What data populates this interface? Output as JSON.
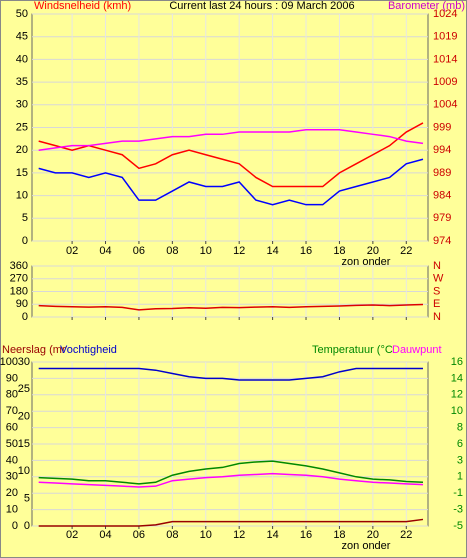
{
  "chart_data": [
    {
      "type": "line",
      "title": "Current last 24 hours : 09 March 2006",
      "y_label": "Windsnelheid (kmh)",
      "y2_label": "Barometer (mb)",
      "x": [
        0,
        1,
        2,
        3,
        4,
        5,
        6,
        7,
        8,
        9,
        10,
        11,
        12,
        13,
        14,
        15,
        16,
        17,
        18,
        19,
        20,
        21,
        22,
        23
      ],
      "xlim": [
        -0.4,
        23.3
      ],
      "xticks": [
        {
          "value": 2,
          "label": "02"
        },
        {
          "value": 4,
          "label": "04"
        },
        {
          "value": 6,
          "label": "06"
        },
        {
          "value": 8,
          "label": "08"
        },
        10,
        12,
        14,
        16,
        18,
        20,
        22
      ],
      "ylim": [
        0,
        50
      ],
      "yticks": [
        0,
        5,
        10,
        15,
        20,
        25,
        30,
        35,
        40,
        45,
        50
      ],
      "y2lim": [
        974,
        1024
      ],
      "y2ticks": [
        974,
        979,
        984,
        989,
        994,
        999,
        1004,
        1009,
        1014,
        1019,
        1024
      ],
      "annotation": "zon onder",
      "grid": true,
      "series": [
        {
          "color": "#ff0000",
          "values": [
            22,
            21,
            20,
            21,
            20,
            19,
            16,
            17,
            19,
            20,
            19,
            18,
            17,
            14,
            12,
            12,
            12,
            12,
            15,
            17,
            19,
            21,
            24,
            26
          ]
        },
        {
          "color": "#0000ff",
          "values": [
            16,
            15,
            15,
            14,
            15,
            14,
            9,
            9,
            11,
            13,
            12,
            12,
            13,
            9,
            8,
            9,
            8,
            8,
            11,
            12,
            13,
            14,
            17,
            18
          ]
        },
        {
          "name": "Barometer (mb)",
          "color": "#ff00ff",
          "axis": "y2",
          "values": [
            994,
            994.5,
            995,
            995,
            995.5,
            996,
            996,
            996.5,
            997,
            997,
            997.5,
            997.5,
            998,
            998,
            998,
            998,
            998.5,
            998.5,
            998.5,
            998,
            997.5,
            997,
            996,
            995.5
          ]
        }
      ]
    },
    {
      "type": "line",
      "x": [
        0,
        1,
        2,
        3,
        4,
        5,
        6,
        7,
        8,
        9,
        10,
        11,
        12,
        13,
        14,
        15,
        16,
        17,
        18,
        19,
        20,
        21,
        22,
        23
      ],
      "xlim": [
        -0.4,
        23.3
      ],
      "xticks": [
        2,
        4,
        6,
        8,
        10,
        12,
        14,
        16,
        18,
        20,
        22
      ],
      "xtick_labels": false,
      "ylim": [
        0,
        360
      ],
      "yticks": [
        0,
        90,
        180,
        270,
        360
      ],
      "y2lim": [
        0,
        360
      ],
      "y2ticks": [
        {
          "value": 0,
          "label": "N"
        },
        {
          "value": 90,
          "label": "E"
        },
        {
          "value": 180,
          "label": "S"
        },
        {
          "value": 270,
          "label": "W"
        },
        {
          "value": 360,
          "label": "N"
        }
      ],
      "annotation": "zon onder",
      "grid": true,
      "series": [
        {
          "color": "#dd0000",
          "values": [
            80,
            75,
            72,
            70,
            72,
            68,
            50,
            58,
            60,
            65,
            62,
            68,
            66,
            70,
            72,
            68,
            72,
            75,
            78,
            82,
            85,
            80,
            85,
            88
          ]
        }
      ]
    },
    {
      "type": "line",
      "x": [
        0,
        1,
        2,
        3,
        4,
        5,
        6,
        7,
        8,
        9,
        10,
        11,
        12,
        13,
        14,
        15,
        16,
        17,
        18,
        19,
        20,
        21,
        22,
        23
      ],
      "xlim": [
        -0.4,
        23.3
      ],
      "xticks": [
        {
          "value": 2,
          "label": "02"
        },
        {
          "value": 4,
          "label": "04"
        },
        {
          "value": 6,
          "label": "06"
        },
        {
          "value": 8,
          "label": "08"
        },
        10,
        12,
        14,
        16,
        18,
        20,
        22
      ],
      "ylim": [
        0,
        100
      ],
      "yticks": [
        0,
        10,
        20,
        30,
        40,
        50,
        60,
        70,
        80,
        90,
        100
      ],
      "y3lim": [
        0,
        30
      ],
      "y3ticks": [
        0,
        5,
        10,
        15,
        20,
        25,
        30
      ],
      "y2lim": [
        -5,
        16
      ],
      "y2ticks": [
        -5,
        {
          "value": -2.9,
          "label": "-3"
        },
        {
          "value": -0.8,
          "label": "-1"
        },
        {
          "value": 1.3,
          "label": "1"
        },
        {
          "value": 3.4,
          "label": "3"
        },
        {
          "value": 5.5,
          "label": "6"
        },
        {
          "value": 7.6,
          "label": "8"
        },
        {
          "value": 9.7,
          "label": "10"
        },
        {
          "value": 11.8,
          "label": "12"
        },
        {
          "value": 13.9,
          "label": "14"
        },
        16
      ],
      "annotation": "zon onder",
      "grid": true,
      "series": [
        {
          "name": "Neerslag (mr",
          "color": "#990000",
          "axis": "y3",
          "values": [
            0,
            0,
            0,
            0,
            0,
            0,
            0,
            0.2,
            0.8,
            0.8,
            0.8,
            0.8,
            0.8,
            0.8,
            0.8,
            0.8,
            0.8,
            0.8,
            0.8,
            0.8,
            0.8,
            0.8,
            0.8,
            1.2
          ]
        },
        {
          "name": "Vochtigheid",
          "color": "#0000cc",
          "values": [
            96,
            96,
            96,
            96,
            96,
            96,
            96,
            95,
            93,
            91,
            90,
            90,
            89,
            89,
            89,
            89,
            90,
            91,
            94,
            96,
            96,
            96,
            96,
            96
          ]
        },
        {
          "name": "Temperatuur (°C",
          "color": "#008800",
          "axis": "y2",
          "values": [
            1.2,
            1.1,
            1.0,
            0.8,
            0.8,
            0.6,
            0.4,
            0.6,
            1.5,
            2.0,
            2.3,
            2.5,
            3.0,
            3.2,
            3.3,
            3.0,
            2.7,
            2.3,
            1.8,
            1.3,
            1.0,
            0.9,
            0.7,
            0.6
          ]
        },
        {
          "name": "Dauwpunt",
          "color": "#ff00ff",
          "axis": "y2",
          "values": [
            0.6,
            0.5,
            0.4,
            0.3,
            0.2,
            0.1,
            0.0,
            0.1,
            0.8,
            1.0,
            1.2,
            1.3,
            1.5,
            1.6,
            1.7,
            1.6,
            1.5,
            1.3,
            1.0,
            0.8,
            0.6,
            0.5,
            0.4,
            0.3
          ]
        }
      ]
    }
  ]
}
